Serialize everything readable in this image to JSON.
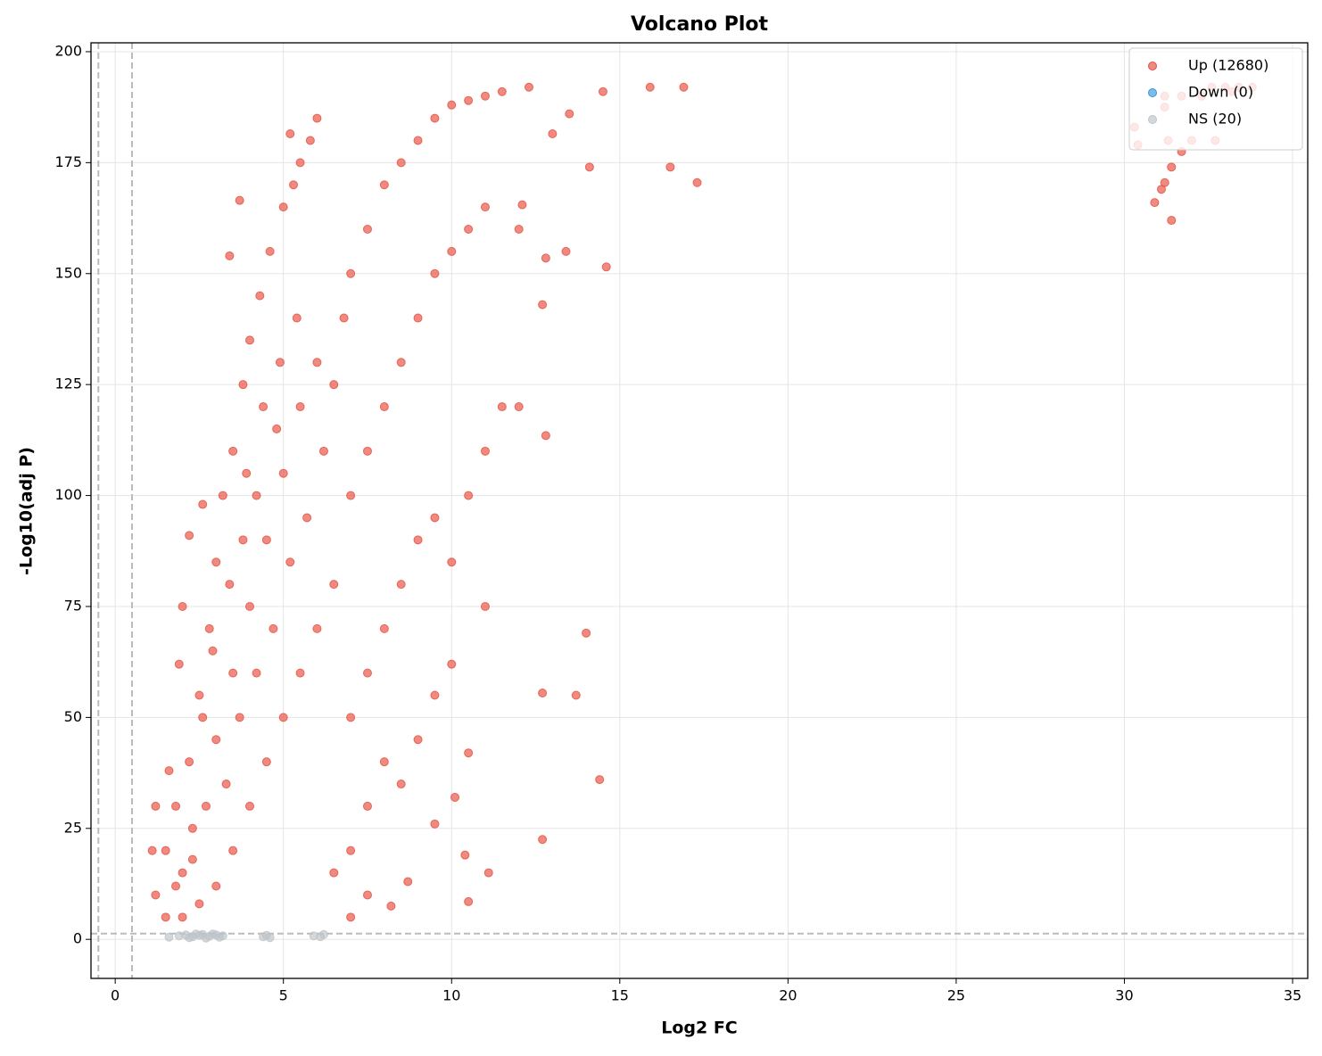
{
  "chart_data": {
    "type": "scatter",
    "title": "Volcano Plot",
    "x_label": "Log2 FC",
    "y_label": "-Log10(adj P)",
    "xlim": [
      -0.72,
      35.45
    ],
    "ylim": [
      -8.8,
      202
    ],
    "xticks": [
      0,
      5,
      10,
      15,
      20,
      25,
      30,
      35
    ],
    "yticks": [
      0,
      25,
      50,
      75,
      100,
      125,
      150,
      175,
      200
    ],
    "grid": true,
    "legend": "upper right",
    "thresholds": {
      "x": [
        -0.5,
        0.5
      ],
      "y": 1.3,
      "color": "#bbbbbb"
    },
    "series": [
      {
        "name": "Up (12680)",
        "color": "#e74c3c",
        "x": [
          1.2,
          1.5,
          1.8,
          2.0,
          2.2,
          2.5,
          2.3,
          2.8,
          3.0,
          3.2,
          3.5,
          3.8,
          4.0,
          4.3,
          4.6,
          5.0,
          5.3,
          5.5,
          5.8,
          6.0,
          2.0,
          2.5,
          3.0,
          3.5,
          4.0,
          4.5,
          5.0,
          5.5,
          6.0,
          6.5,
          3.0,
          3.5,
          4.0,
          4.5,
          5.0,
          5.5,
          6.0,
          4.2,
          3.8,
          4.8,
          2.7,
          3.3,
          3.7,
          4.2,
          4.7,
          5.2,
          5.7,
          6.2,
          6.5,
          6.8,
          1.5,
          1.8,
          2.3,
          2.6,
          2.9,
          3.4,
          3.9,
          4.4,
          4.9,
          5.4,
          7.0,
          7.5,
          8.0,
          8.5,
          9.0,
          9.5,
          10.0,
          10.5,
          11.0,
          11.5,
          7.0,
          7.5,
          8.0,
          8.5,
          9.0,
          9.5,
          10.0,
          10.5,
          11.0,
          12.0,
          7.0,
          7.5,
          8.0,
          8.5,
          9.0,
          9.5,
          10.0,
          10.5,
          11.0,
          11.5,
          7.0,
          7.5,
          8.0,
          8.5,
          9.0,
          9.5,
          10.0,
          10.5,
          11.0,
          12.0,
          6.5,
          7.0,
          7.5,
          8.2,
          8.7,
          9.5,
          10.1,
          10.5,
          11.1,
          10.4,
          12.7,
          12.7,
          13.7,
          14.4,
          14.0,
          12.8,
          12.7,
          13.4,
          14.6,
          12.8,
          12.3,
          14.5,
          15.9,
          16.9,
          14.1,
          16.5,
          17.3,
          13.5,
          13.0,
          12.1,
          5.2,
          3.7,
          3.4,
          2.6,
          2.2,
          1.6,
          1.2,
          1.1,
          2.0,
          1.9,
          30.3,
          30.4,
          30.9,
          31.1,
          31.2,
          31.3,
          31.4,
          31.4,
          31.7,
          32.0,
          32.3,
          32.6,
          33.0,
          33.4,
          33.8,
          31.2,
          31.2,
          32.7,
          31.7,
          33.2
        ],
        "values": [
          10,
          20,
          30,
          15,
          40,
          55,
          25,
          70,
          85,
          100,
          110,
          125,
          135,
          145,
          155,
          165,
          170,
          175,
          180,
          185,
          5,
          8,
          12,
          20,
          30,
          40,
          50,
          60,
          70,
          80,
          45,
          60,
          75,
          90,
          105,
          120,
          130,
          100,
          90,
          115,
          30,
          35,
          50,
          60,
          70,
          85,
          95,
          110,
          125,
          140,
          5,
          12,
          18,
          50,
          65,
          80,
          105,
          120,
          130,
          140,
          150,
          160,
          170,
          175,
          180,
          185,
          188,
          189,
          190,
          191,
          100,
          110,
          120,
          130,
          140,
          150,
          155,
          160,
          165,
          160,
          50,
          60,
          70,
          80,
          90,
          95,
          85,
          100,
          110,
          120,
          20,
          30,
          40,
          35,
          45,
          55,
          62,
          42,
          75,
          120,
          15,
          5,
          10,
          7.5,
          13,
          26,
          32,
          8.5,
          15,
          19,
          22.5,
          55.5,
          55,
          36,
          69,
          113.5,
          143,
          155,
          151.5,
          153.5,
          192,
          191,
          192,
          192,
          174,
          174,
          170.5,
          186,
          181.5,
          165.5,
          181.5,
          166.5,
          154,
          98,
          91,
          38,
          30,
          20,
          75,
          62,
          183,
          179,
          166,
          169,
          170.5,
          180,
          174,
          162,
          177.5,
          180,
          190,
          192,
          192,
          192,
          192,
          187.5,
          190,
          180,
          190,
          191
        ]
      },
      {
        "name": "Down (0)",
        "color": "#3498db",
        "x": [],
        "values": []
      },
      {
        "name": "NS (20)",
        "color": "#bdc3c7",
        "x": [
          1.6,
          1.9,
          2.1,
          2.3,
          2.5,
          2.6,
          2.8,
          3.0,
          3.1,
          2.9,
          4.4,
          4.5,
          5.9,
          6.2,
          2.2,
          2.4,
          2.7,
          3.2,
          4.6,
          6.1
        ],
        "values": [
          0.5,
          0.8,
          1.0,
          0.6,
          0.9,
          1.1,
          0.7,
          1.0,
          0.5,
          1.2,
          0.6,
          0.9,
          0.8,
          1.1,
          0.4,
          1.2,
          0.3,
          0.8,
          0.4,
          0.6
        ]
      }
    ]
  }
}
